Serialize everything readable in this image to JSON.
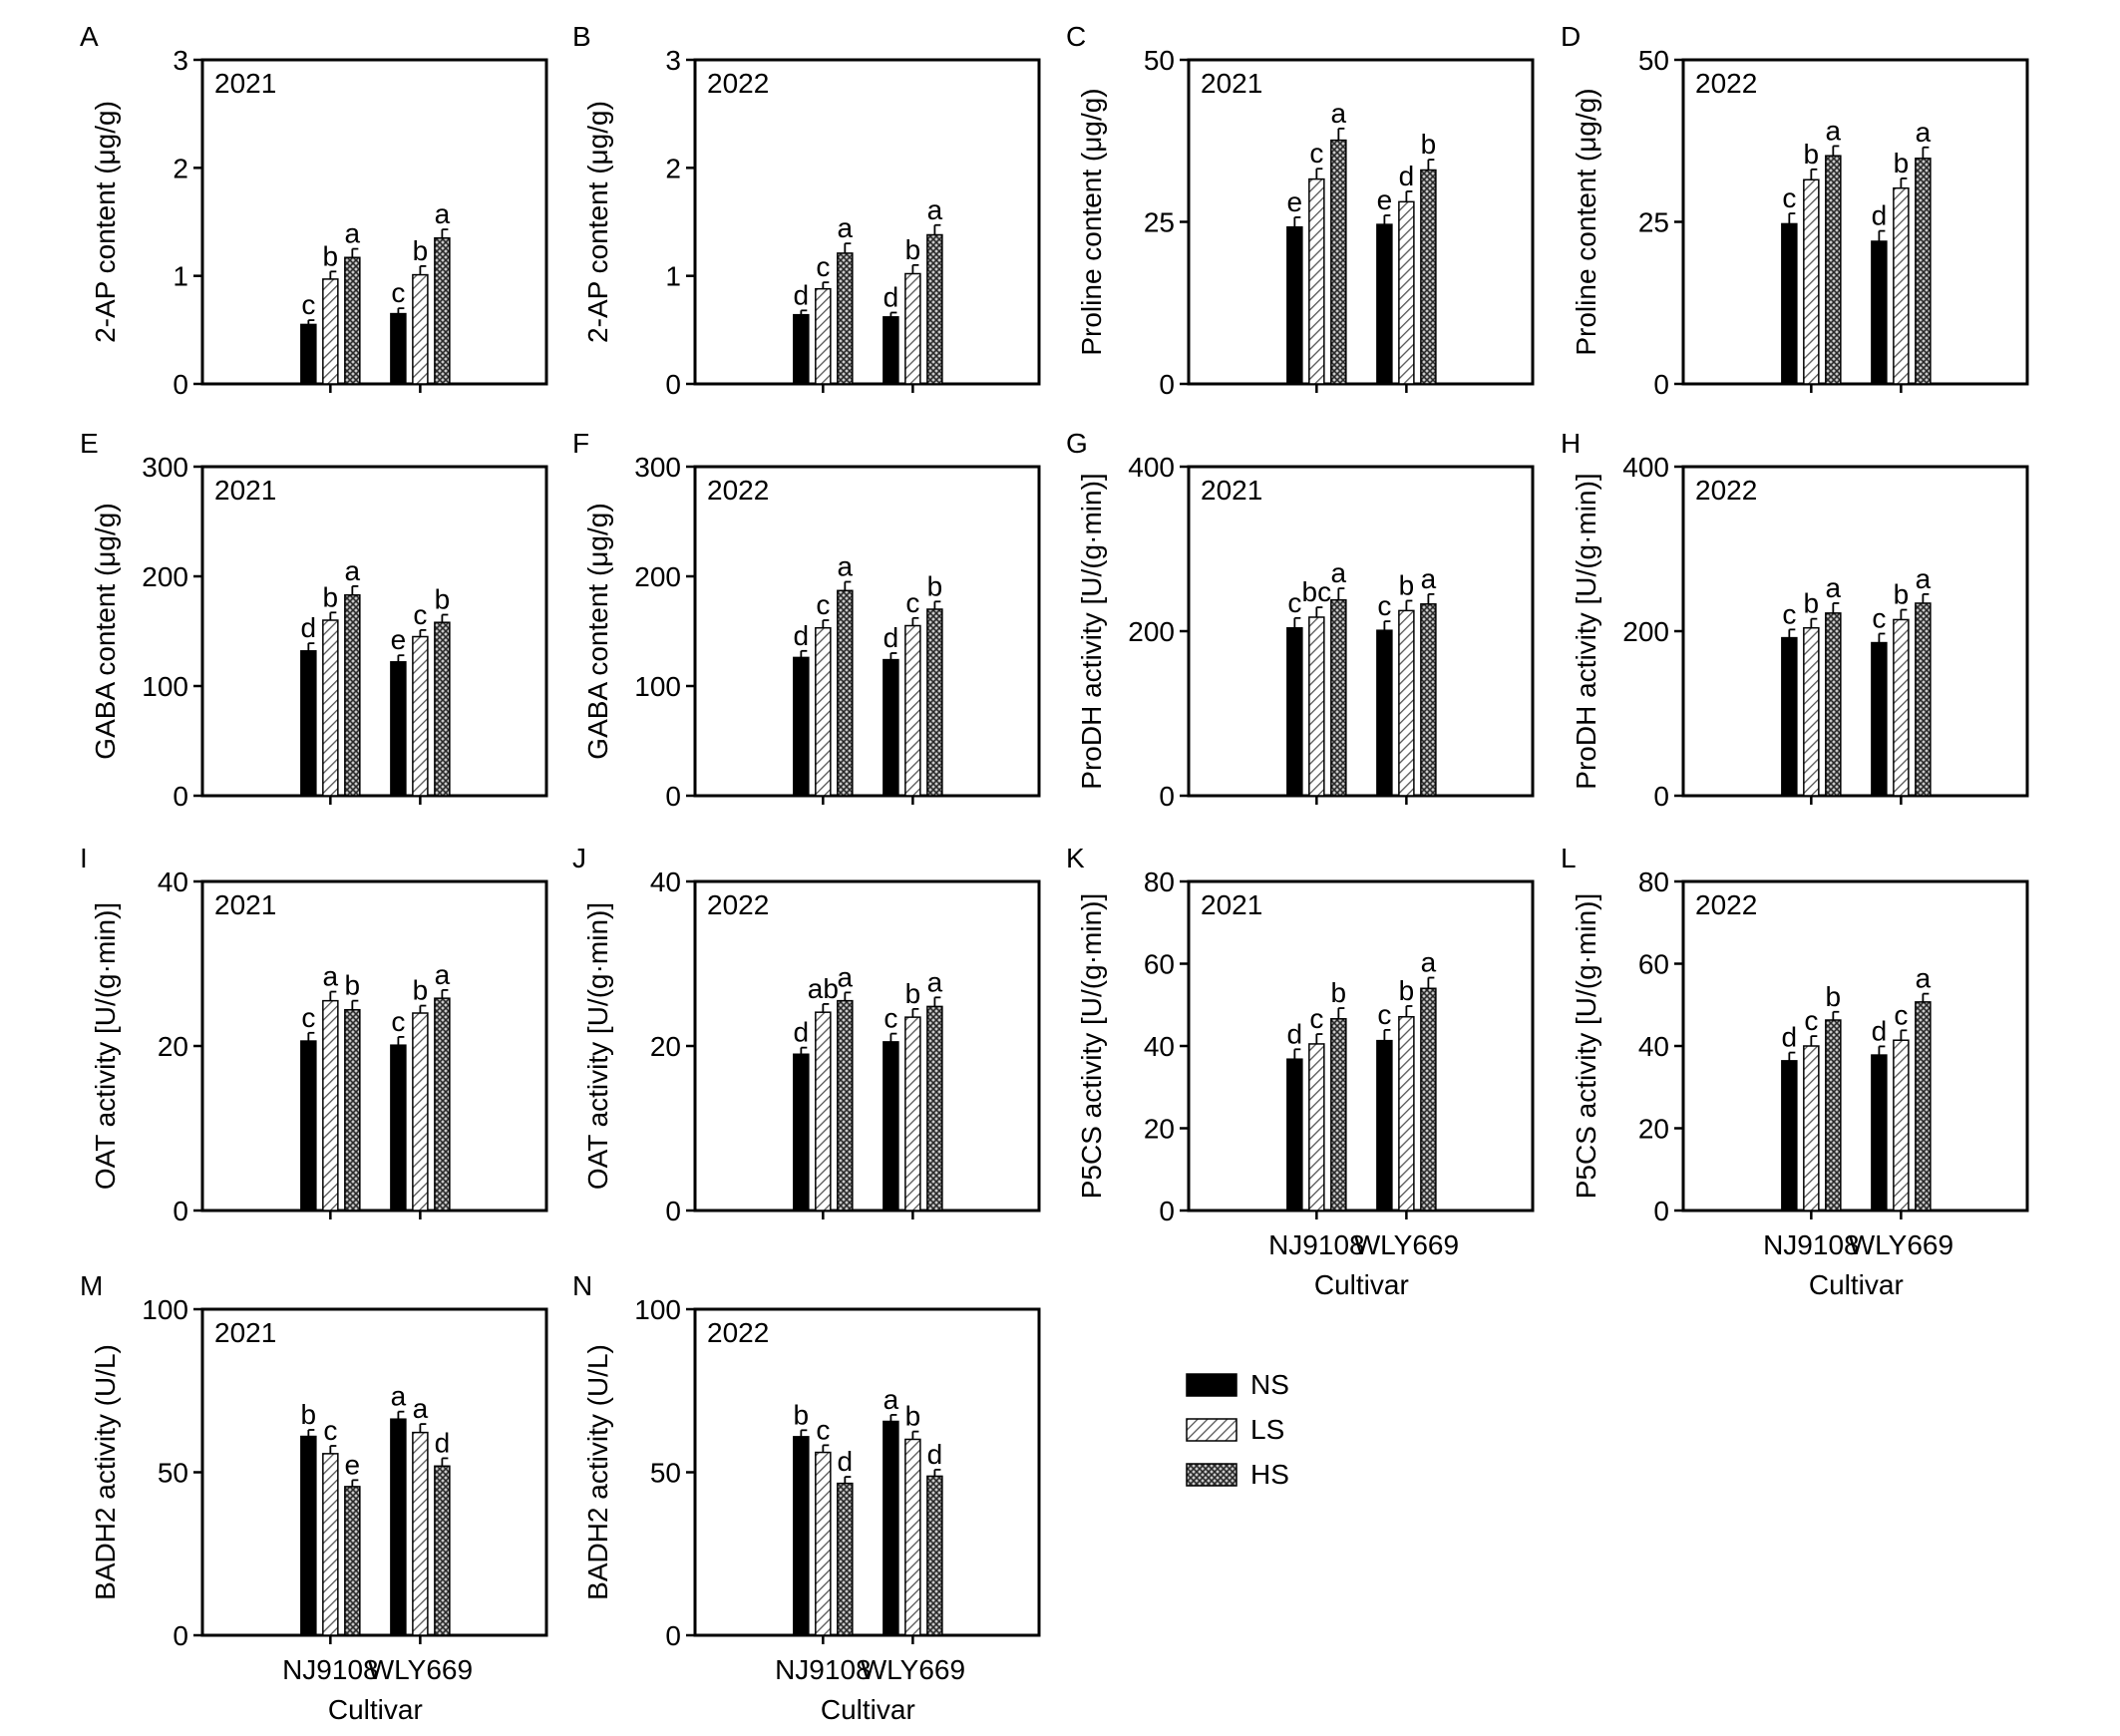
{
  "legend": {
    "items": [
      {
        "label": "NS",
        "pattern": "solid"
      },
      {
        "label": "LS",
        "pattern": "hatch"
      },
      {
        "label": "HS",
        "pattern": "cross"
      }
    ]
  },
  "cultivars": [
    "NJ9108",
    "WLY669"
  ],
  "xlabel": "Cultivar",
  "chart_data": [
    {
      "panel": "A",
      "type": "bar",
      "year": "2021",
      "ylabel": "2-AP content (μg/g)",
      "ylim": [
        0,
        3
      ],
      "yticks": [
        0,
        1,
        2,
        3
      ],
      "categories": [
        "NJ9108",
        "WLY669"
      ],
      "series": [
        {
          "name": "NS",
          "values": [
            0.55,
            0.65
          ],
          "errors": [
            0.04,
            0.05
          ],
          "letters": [
            "c",
            "c"
          ]
        },
        {
          "name": "LS",
          "values": [
            0.97,
            1.01
          ],
          "errors": [
            0.07,
            0.08
          ],
          "letters": [
            "b",
            "b"
          ]
        },
        {
          "name": "HS",
          "values": [
            1.17,
            1.35
          ],
          "errors": [
            0.08,
            0.08
          ],
          "letters": [
            "a",
            "a"
          ]
        }
      ],
      "show_x_labels": false
    },
    {
      "panel": "B",
      "type": "bar",
      "year": "2022",
      "ylabel": "2-AP content (μg/g)",
      "ylim": [
        0,
        3
      ],
      "yticks": [
        0,
        1,
        2,
        3
      ],
      "categories": [
        "NJ9108",
        "WLY669"
      ],
      "series": [
        {
          "name": "NS",
          "values": [
            0.64,
            0.62
          ],
          "errors": [
            0.04,
            0.04
          ],
          "letters": [
            "d",
            "d"
          ]
        },
        {
          "name": "LS",
          "values": [
            0.88,
            1.02
          ],
          "errors": [
            0.06,
            0.08
          ],
          "letters": [
            "c",
            "b"
          ]
        },
        {
          "name": "HS",
          "values": [
            1.21,
            1.38
          ],
          "errors": [
            0.09,
            0.09
          ],
          "letters": [
            "a",
            "a"
          ]
        }
      ],
      "show_x_labels": false
    },
    {
      "panel": "C",
      "type": "bar",
      "year": "2021",
      "ylabel": "Proline content (μg/g)",
      "ylim": [
        0,
        50
      ],
      "yticks": [
        0,
        25,
        50
      ],
      "categories": [
        "NJ9108",
        "WLY669"
      ],
      "series": [
        {
          "name": "NS",
          "values": [
            24.2,
            24.6
          ],
          "errors": [
            1.5,
            1.4
          ],
          "letters": [
            "e",
            "e"
          ]
        },
        {
          "name": "LS",
          "values": [
            31.6,
            28.1
          ],
          "errors": [
            1.6,
            1.6
          ],
          "letters": [
            "c",
            "d"
          ]
        },
        {
          "name": "HS",
          "values": [
            37.6,
            33.0
          ],
          "errors": [
            1.8,
            1.6
          ],
          "letters": [
            "a",
            "b"
          ]
        }
      ],
      "show_x_labels": false
    },
    {
      "panel": "D",
      "type": "bar",
      "year": "2022",
      "ylabel": "Proline content (μg/g)",
      "ylim": [
        0,
        50
      ],
      "yticks": [
        0,
        25,
        50
      ],
      "categories": [
        "NJ9108",
        "WLY669"
      ],
      "series": [
        {
          "name": "NS",
          "values": [
            24.7,
            22.0
          ],
          "errors": [
            1.6,
            1.6
          ],
          "letters": [
            "c",
            "d"
          ]
        },
        {
          "name": "LS",
          "values": [
            31.5,
            30.2
          ],
          "errors": [
            1.6,
            1.5
          ],
          "letters": [
            "b",
            "b"
          ]
        },
        {
          "name": "HS",
          "values": [
            35.2,
            34.8
          ],
          "errors": [
            1.5,
            1.7
          ],
          "letters": [
            "a",
            "a"
          ]
        }
      ],
      "show_x_labels": false
    },
    {
      "panel": "E",
      "type": "bar",
      "year": "2021",
      "ylabel": "GABA content (μg/g)",
      "ylim": [
        0,
        300
      ],
      "yticks": [
        0,
        100,
        200,
        300
      ],
      "categories": [
        "NJ9108",
        "WLY669"
      ],
      "series": [
        {
          "name": "NS",
          "values": [
            132,
            122
          ],
          "errors": [
            7,
            6
          ],
          "letters": [
            "d",
            "e"
          ]
        },
        {
          "name": "LS",
          "values": [
            160,
            145
          ],
          "errors": [
            7,
            6
          ],
          "letters": [
            "b",
            "c"
          ]
        },
        {
          "name": "HS",
          "values": [
            183,
            158
          ],
          "errors": [
            8,
            7
          ],
          "letters": [
            "a",
            "b"
          ]
        }
      ],
      "show_x_labels": false
    },
    {
      "panel": "F",
      "type": "bar",
      "year": "2022",
      "ylabel": "GABA content (μg/g)",
      "ylim": [
        0,
        300
      ],
      "yticks": [
        0,
        100,
        200,
        300
      ],
      "categories": [
        "NJ9108",
        "WLY669"
      ],
      "series": [
        {
          "name": "NS",
          "values": [
            126,
            124
          ],
          "errors": [
            6,
            6
          ],
          "letters": [
            "d",
            "d"
          ]
        },
        {
          "name": "LS",
          "values": [
            153,
            155
          ],
          "errors": [
            7,
            7
          ],
          "letters": [
            "c",
            "c"
          ]
        },
        {
          "name": "HS",
          "values": [
            187,
            170
          ],
          "errors": [
            8,
            7
          ],
          "letters": [
            "a",
            "b"
          ]
        }
      ],
      "show_x_labels": false
    },
    {
      "panel": "G",
      "type": "bar",
      "year": "2021",
      "ylabel": "ProDH activity [U/(g·min)]",
      "ylim": [
        0,
        400
      ],
      "yticks": [
        0,
        200,
        400
      ],
      "categories": [
        "NJ9108",
        "WLY669"
      ],
      "series": [
        {
          "name": "NS",
          "values": [
            204,
            201
          ],
          "errors": [
            12,
            11
          ],
          "letters": [
            "c",
            "c"
          ]
        },
        {
          "name": "LS",
          "values": [
            217,
            225
          ],
          "errors": [
            12,
            12
          ],
          "letters": [
            "bc",
            "b"
          ]
        },
        {
          "name": "HS",
          "values": [
            238,
            233
          ],
          "errors": [
            14,
            12
          ],
          "letters": [
            "a",
            "a"
          ]
        }
      ],
      "show_x_labels": false
    },
    {
      "panel": "H",
      "type": "bar",
      "year": "2022",
      "ylabel": "ProDH activity [U/(g·min)]",
      "ylim": [
        0,
        400
      ],
      "yticks": [
        0,
        200,
        400
      ],
      "categories": [
        "NJ9108",
        "WLY669"
      ],
      "series": [
        {
          "name": "NS",
          "values": [
            192,
            186
          ],
          "errors": [
            10,
            11
          ],
          "letters": [
            "c",
            "c"
          ]
        },
        {
          "name": "LS",
          "values": [
            204,
            214
          ],
          "errors": [
            11,
            12
          ],
          "letters": [
            "b",
            "b"
          ]
        },
        {
          "name": "HS",
          "values": [
            222,
            234
          ],
          "errors": [
            12,
            11
          ],
          "letters": [
            "a",
            "a"
          ]
        }
      ],
      "show_x_labels": false
    },
    {
      "panel": "I",
      "type": "bar",
      "year": "2021",
      "ylabel": "OAT activity [U/(g·min)]",
      "ylim": [
        0,
        40
      ],
      "yticks": [
        0,
        20,
        40
      ],
      "categories": [
        "NJ9108",
        "WLY669"
      ],
      "series": [
        {
          "name": "NS",
          "values": [
            20.6,
            20.1
          ],
          "errors": [
            1.0,
            1.0
          ],
          "letters": [
            "c",
            "c"
          ]
        },
        {
          "name": "LS",
          "values": [
            25.5,
            24.0
          ],
          "errors": [
            1.1,
            0.9
          ],
          "letters": [
            "a",
            "b"
          ]
        },
        {
          "name": "HS",
          "values": [
            24.4,
            25.8
          ],
          "errors": [
            1.1,
            1.0
          ],
          "letters": [
            "b",
            "a"
          ]
        }
      ],
      "show_x_labels": false
    },
    {
      "panel": "J",
      "type": "bar",
      "year": "2022",
      "ylabel": "OAT activity [U/(g·min)]",
      "ylim": [
        0,
        40
      ],
      "yticks": [
        0,
        20,
        40
      ],
      "categories": [
        "NJ9108",
        "WLY669"
      ],
      "series": [
        {
          "name": "NS",
          "values": [
            19.0,
            20.5
          ],
          "errors": [
            0.8,
            1.0
          ],
          "letters": [
            "d",
            "c"
          ]
        },
        {
          "name": "LS",
          "values": [
            24.1,
            23.5
          ],
          "errors": [
            1.0,
            1.0
          ],
          "letters": [
            "ab",
            "b"
          ]
        },
        {
          "name": "HS",
          "values": [
            25.5,
            24.8
          ],
          "errors": [
            1.0,
            1.1
          ],
          "letters": [
            "a",
            "a"
          ]
        }
      ],
      "show_x_labels": false
    },
    {
      "panel": "K",
      "type": "bar",
      "year": "2021",
      "ylabel": "P5CS activity [U/(g·min)]",
      "ylim": [
        0,
        80
      ],
      "yticks": [
        0,
        20,
        40,
        60,
        80
      ],
      "categories": [
        "NJ9108",
        "WLY669"
      ],
      "series": [
        {
          "name": "NS",
          "values": [
            36.8,
            41.3
          ],
          "errors": [
            2.4,
            2.6
          ],
          "letters": [
            "d",
            "c"
          ]
        },
        {
          "name": "LS",
          "values": [
            40.5,
            47.1
          ],
          "errors": [
            2.4,
            2.6
          ],
          "letters": [
            "c",
            "b"
          ]
        },
        {
          "name": "HS",
          "values": [
            46.6,
            54.0
          ],
          "errors": [
            2.6,
            2.6
          ],
          "letters": [
            "b",
            "a"
          ]
        }
      ],
      "show_x_labels": true
    },
    {
      "panel": "L",
      "type": "bar",
      "year": "2022",
      "ylabel": "P5CS activity [U/(g·min)]",
      "ylim": [
        0,
        80
      ],
      "yticks": [
        0,
        20,
        40,
        60,
        80
      ],
      "categories": [
        "NJ9108",
        "WLY669"
      ],
      "series": [
        {
          "name": "NS",
          "values": [
            36.4,
            37.8
          ],
          "errors": [
            2.0,
            2.1
          ],
          "letters": [
            "d",
            "d"
          ]
        },
        {
          "name": "LS",
          "values": [
            40.0,
            41.4
          ],
          "errors": [
            2.4,
            2.4
          ],
          "letters": [
            "c",
            "c"
          ]
        },
        {
          "name": "HS",
          "values": [
            46.3,
            50.7
          ],
          "errors": [
            2.0,
            2.0
          ],
          "letters": [
            "b",
            "a"
          ]
        }
      ],
      "show_x_labels": true
    },
    {
      "panel": "M",
      "type": "bar",
      "year": "2021",
      "ylabel": "BADH2 activity (U/L)",
      "ylim": [
        0,
        100
      ],
      "yticks": [
        0,
        50,
        100
      ],
      "categories": [
        "NJ9108",
        "WLY669"
      ],
      "series": [
        {
          "name": "NS",
          "values": [
            61.0,
            66.3
          ],
          "errors": [
            2.0,
            2.3
          ],
          "letters": [
            "b",
            "a"
          ]
        },
        {
          "name": "LS",
          "values": [
            55.7,
            62.2
          ],
          "errors": [
            2.4,
            2.6
          ],
          "letters": [
            "c",
            "a"
          ]
        },
        {
          "name": "HS",
          "values": [
            45.6,
            51.9
          ],
          "errors": [
            2.0,
            2.4
          ],
          "letters": [
            "e",
            "d"
          ]
        }
      ],
      "show_x_labels": true
    },
    {
      "panel": "N",
      "type": "bar",
      "year": "2022",
      "ylabel": "BADH2 activity (U/L)",
      "ylim": [
        0,
        100
      ],
      "yticks": [
        0,
        50,
        100
      ],
      "categories": [
        "NJ9108",
        "WLY669"
      ],
      "series": [
        {
          "name": "NS",
          "values": [
            60.9,
            65.6
          ],
          "errors": [
            2.0,
            2.0
          ],
          "letters": [
            "b",
            "a"
          ]
        },
        {
          "name": "LS",
          "values": [
            56.1,
            60.1
          ],
          "errors": [
            2.2,
            2.4
          ],
          "letters": [
            "c",
            "b"
          ]
        },
        {
          "name": "HS",
          "values": [
            46.6,
            48.8
          ],
          "errors": [
            2.0,
            2.0
          ],
          "letters": [
            "d",
            "d"
          ]
        }
      ],
      "show_x_labels": true
    }
  ]
}
